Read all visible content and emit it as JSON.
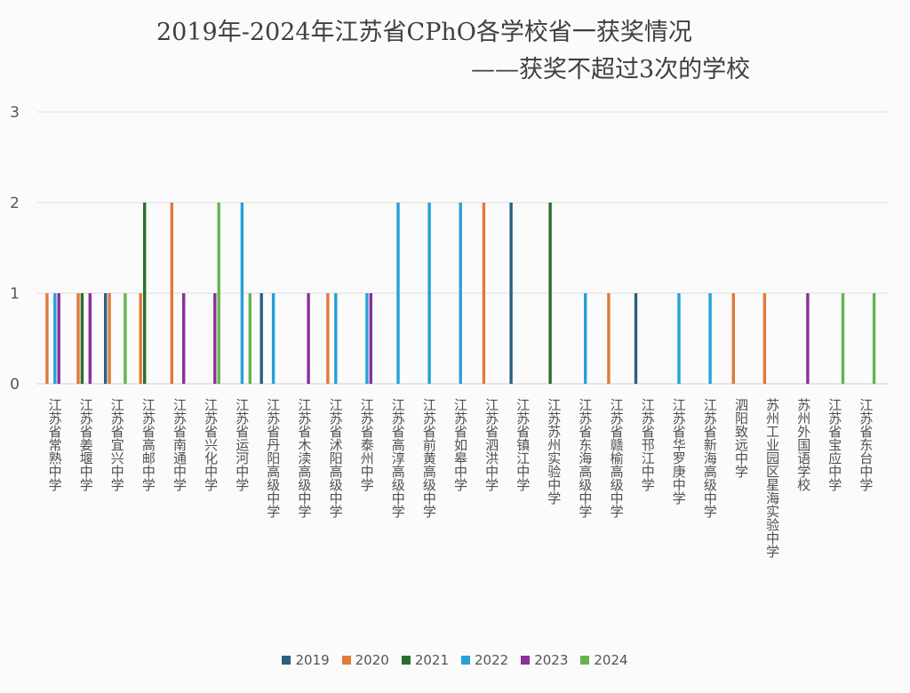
{
  "title": "2019年-2024年江苏省CPhO各学校省一获奖情况",
  "subtitle": "——获奖不超过3次的学校",
  "colors": {
    "2019": "#2d5f7f",
    "2020": "#e07a3c",
    "2021": "#2d6e2d",
    "2022": "#27a1d6",
    "2023": "#8a2f9e",
    "2024": "#66b54a"
  },
  "chart_data": {
    "type": "bar",
    "title": "2019年-2024年江苏省CPhO各学校省一获奖情况",
    "subtitle": "——获奖不超过3次的学校",
    "ylim": [
      0,
      3
    ],
    "yticks": [
      "0",
      "1",
      "2",
      "3"
    ],
    "grid": true,
    "legend_position": "bottom",
    "categories": [
      "江苏省常熟中学",
      "江苏省姜堰中学",
      "江苏省宜兴中学",
      "江苏省高邮中学",
      "江苏省南通中学",
      "江苏省兴化中学",
      "江苏省运河中学",
      "江苏省丹阳高级中学",
      "江苏省木渎高级中学",
      "江苏省沭阳高级中学",
      "江苏省泰州中学",
      "江苏省高淳高级中学",
      "江苏省前黄高级中学",
      "江苏省如皋中学",
      "江苏省泗洪中学",
      "江苏省镇江中学",
      "江苏苏州实验中学",
      "江苏省东海高级中学",
      "江苏省赣榆高级中学",
      "江苏省邗江中学",
      "江苏省华罗庚中学",
      "江苏省新海高级中学",
      "泗阳致远中学",
      "苏州工业园区星海实验中学",
      "苏州外国语学校",
      "江苏省宝应中学",
      "江苏省东台中学"
    ],
    "series": [
      {
        "name": "2019",
        "values": [
          0,
          0,
          1,
          0,
          0,
          0,
          0,
          1,
          0,
          0,
          0,
          0,
          0,
          0,
          0,
          2,
          0,
          0,
          0,
          1,
          0,
          0,
          0,
          0,
          0,
          0,
          0
        ]
      },
      {
        "name": "2020",
        "values": [
          1,
          1,
          1,
          1,
          2,
          0,
          0,
          0,
          0,
          1,
          0,
          0,
          0,
          0,
          2,
          0,
          0,
          0,
          1,
          0,
          0,
          0,
          1,
          1,
          0,
          0,
          0
        ]
      },
      {
        "name": "2021",
        "values": [
          0,
          1,
          0,
          2,
          0,
          0,
          0,
          0,
          0,
          0,
          0,
          0,
          0,
          0,
          0,
          0,
          2,
          0,
          0,
          0,
          0,
          0,
          0,
          0,
          0,
          0,
          0
        ]
      },
      {
        "name": "2022",
        "values": [
          1,
          0,
          0,
          0,
          0,
          0,
          2,
          1,
          0,
          1,
          1,
          2,
          2,
          2,
          0,
          0,
          0,
          1,
          0,
          0,
          1,
          1,
          0,
          0,
          0,
          0,
          0
        ]
      },
      {
        "name": "2023",
        "values": [
          1,
          1,
          0,
          0,
          1,
          1,
          0,
          0,
          1,
          0,
          1,
          0,
          0,
          0,
          0,
          0,
          0,
          0,
          0,
          0,
          0,
          0,
          0,
          0,
          1,
          0,
          0
        ]
      },
      {
        "name": "2024",
        "values": [
          0,
          0,
          1,
          0,
          0,
          2,
          1,
          0,
          0,
          0,
          0,
          0,
          0,
          0,
          0,
          0,
          0,
          0,
          0,
          0,
          0,
          0,
          0,
          0,
          0,
          1,
          1
        ]
      }
    ]
  }
}
